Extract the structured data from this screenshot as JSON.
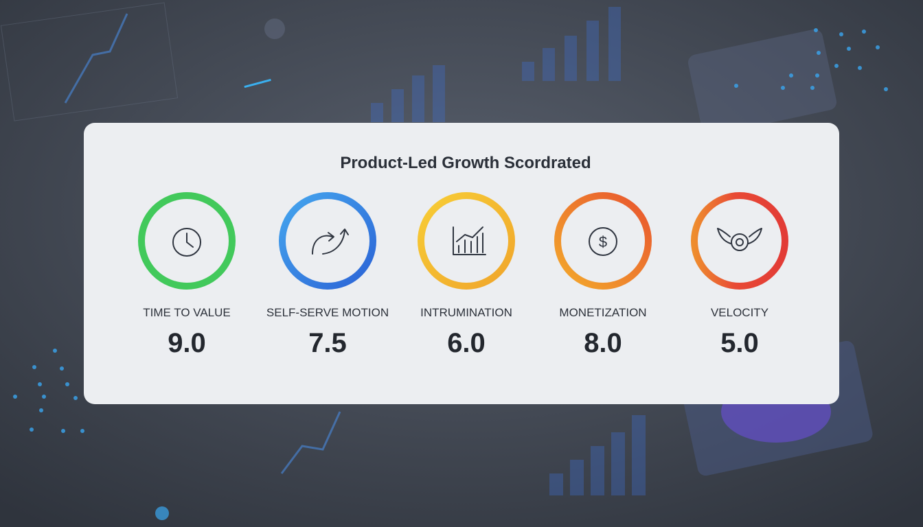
{
  "card": {
    "title": "Product-Led Growth Scordrated",
    "metrics": [
      {
        "label": "TIME TO VALUE",
        "score": "9.0"
      },
      {
        "label": "SELF-SERVE MOTION",
        "score": "7.5"
      },
      {
        "label": "INTRUMINATION",
        "score": "6.0"
      },
      {
        "label": "MONETIZATION",
        "score": "8.0"
      },
      {
        "label": "VELOCITY",
        "score": "5.0"
      }
    ]
  }
}
